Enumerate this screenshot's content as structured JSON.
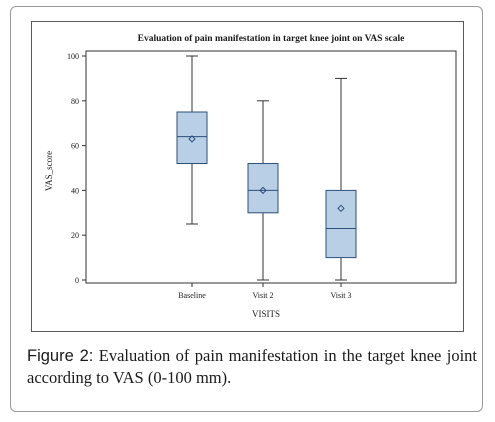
{
  "figure": {
    "caption_label": "Figure 2:",
    "caption_text": " Evaluation of pain manifestation in the target knee joint according to VAS (0-100 mm)."
  },
  "chart_data": {
    "type": "box",
    "title": "Evaluation of pain manifestation in target knee joint on VAS scale",
    "xlabel": "VISITS",
    "ylabel": "VAS_score",
    "ylim": [
      0,
      100
    ],
    "yticks": [
      0,
      20,
      40,
      60,
      80,
      100
    ],
    "categories": [
      "Baseline",
      "Visit 2",
      "Visit 3"
    ],
    "boxes": [
      {
        "category": "Baseline",
        "min": 25,
        "q1": 52,
        "median": 64,
        "mean": 63,
        "q3": 75,
        "max": 100
      },
      {
        "category": "Visit 2",
        "min": 0,
        "q1": 30,
        "median": 40,
        "mean": 40,
        "q3": 52,
        "max": 80
      },
      {
        "category": "Visit 3",
        "min": 0,
        "q1": 10,
        "median": 23,
        "mean": 32,
        "q3": 40,
        "max": 90
      }
    ],
    "colors": {
      "box_fill": "#b9cfe6",
      "box_stroke": "#2d4f7a",
      "whisker": "#333333",
      "axis": "#333333"
    },
    "grid": false,
    "legend": "none"
  }
}
